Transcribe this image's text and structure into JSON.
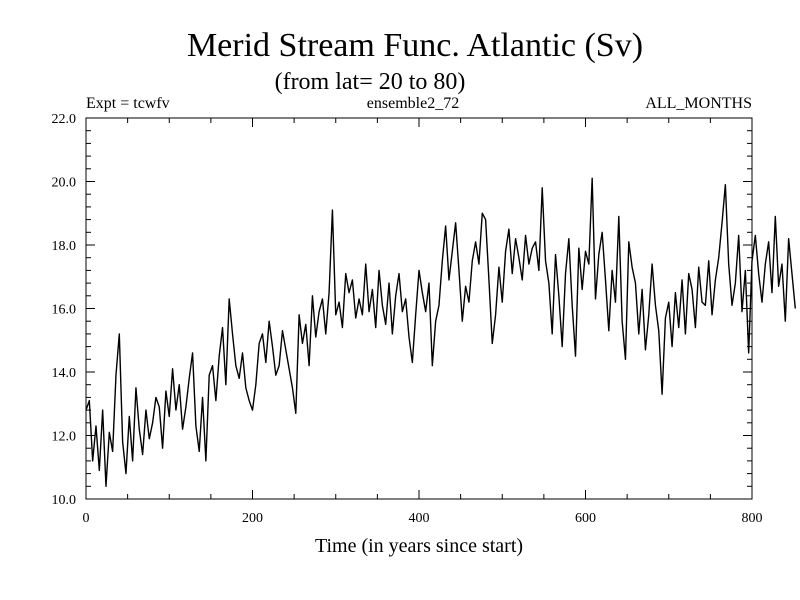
{
  "chart_data": {
    "type": "line",
    "title": "Merid Stream Func. Atlantic (Sv)",
    "subtitle": "(from lat= 20 to 80)",
    "annotations": {
      "left": "Expt = tcwfv",
      "center": "ensemble2_72",
      "right": "ALL_MONTHS"
    },
    "xlabel": "Time (in years since start)",
    "ylabel": "",
    "xlim": [
      0,
      800
    ],
    "ylim": [
      10.0,
      22.0
    ],
    "x_ticks": [
      "0",
      "200",
      "400",
      "600",
      "800"
    ],
    "y_ticks": [
      "10.0",
      "12.0",
      "14.0",
      "16.0",
      "18.0",
      "20.0",
      "22.0"
    ],
    "grid": false,
    "series": [
      {
        "name": "Merid Stream Func. Atlantic",
        "x_start": 0,
        "x_step": 4,
        "values": [
          12.8,
          13.1,
          11.2,
          12.3,
          10.9,
          12.8,
          10.4,
          12.1,
          11.5,
          13.9,
          15.2,
          11.8,
          10.8,
          12.6,
          11.2,
          13.5,
          12.2,
          11.4,
          12.8,
          11.9,
          12.4,
          13.2,
          12.9,
          11.6,
          13.4,
          12.6,
          14.1,
          12.8,
          13.6,
          12.2,
          12.9,
          13.8,
          14.6,
          12.3,
          11.5,
          13.2,
          11.2,
          13.9,
          14.2,
          13.1,
          14.5,
          15.4,
          13.6,
          16.3,
          15.2,
          14.2,
          13.8,
          14.6,
          13.5,
          13.1,
          12.8,
          13.6,
          14.9,
          15.2,
          14.3,
          15.6,
          14.8,
          13.9,
          14.2,
          15.3,
          14.7,
          14.1,
          13.5,
          12.7,
          15.8,
          14.9,
          15.5,
          14.2,
          16.4,
          15.1,
          15.9,
          16.3,
          15.2,
          16.5,
          19.1,
          15.8,
          16.2,
          15.4,
          17.1,
          16.5,
          16.9,
          15.7,
          16.3,
          15.8,
          17.4,
          15.9,
          16.6,
          15.4,
          17.2,
          16.1,
          15.5,
          16.8,
          15.2,
          16.4,
          17.1,
          15.9,
          16.3,
          15.1,
          14.3,
          15.8,
          17.2,
          16.5,
          15.9,
          16.8,
          14.2,
          15.6,
          16.1,
          17.5,
          18.6,
          16.9,
          17.8,
          18.7,
          17.2,
          15.6,
          16.7,
          16.2,
          17.5,
          18.1,
          17.4,
          19.0,
          18.8,
          16.9,
          14.9,
          15.8,
          17.3,
          16.2,
          17.8,
          18.5,
          17.1,
          18.2,
          17.6,
          16.9,
          18.3,
          17.4,
          17.9,
          18.1,
          17.2,
          19.8,
          17.5,
          16.8,
          15.2,
          17.7,
          16.4,
          14.8,
          17.1,
          18.2,
          16.1,
          14.5,
          17.9,
          16.6,
          17.8,
          17.4,
          20.1,
          16.3,
          17.7,
          18.4,
          16.9,
          15.3,
          17.2,
          16.2,
          18.9,
          15.6,
          14.4,
          18.1,
          17.3,
          16.8,
          15.2,
          16.6,
          14.7,
          15.8,
          17.4,
          16.1,
          15.3,
          13.3,
          15.7,
          16.2,
          14.8,
          16.5,
          15.4,
          16.9,
          15.2,
          17.1,
          16.6,
          15.4,
          17.3,
          16.2,
          16.1,
          17.5,
          15.8,
          16.9,
          17.6,
          18.7,
          19.9,
          17.4,
          16.1,
          16.8,
          18.3,
          15.9,
          17.2,
          14.6,
          17.5,
          18.3,
          17.1,
          16.2,
          17.4,
          18.1,
          16.5,
          18.9,
          16.7,
          17.4,
          15.6,
          18.2,
          17.1,
          16.0
        ]
      }
    ]
  }
}
